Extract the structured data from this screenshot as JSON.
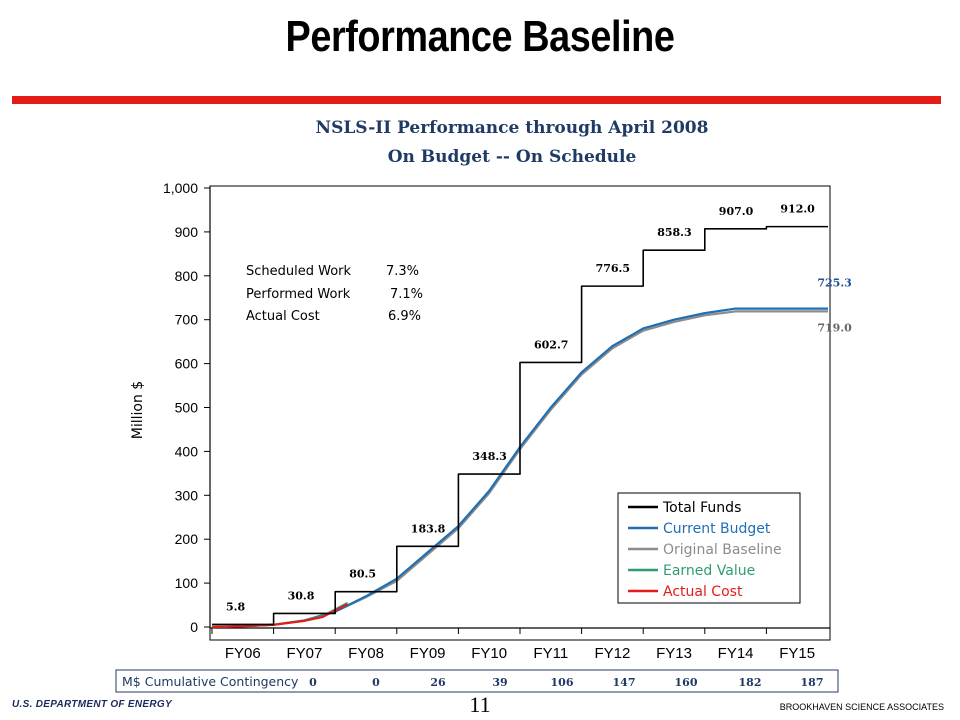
{
  "slide": {
    "title": "Performance Baseline",
    "page_number": "11",
    "footer_left": "U.S. DEPARTMENT OF ENERGY",
    "footer_right": "BROOKHAVEN SCIENCE ASSOCIATES"
  },
  "colors": {
    "title_rule": "#e41b17",
    "total_funds": "#000000",
    "current_budget": "#1f6fb5",
    "original_baseline": "#8c8c8c",
    "earned_value": "#2e9e6e",
    "actual_cost": "#e41b17",
    "chart_title": "#1f3a64"
  },
  "performance_box": [
    {
      "label": "Scheduled Work",
      "value": "7.3%"
    },
    {
      "label": "Performed Work",
      "value": "7.1%"
    },
    {
      "label": "Actual Cost",
      "value": "6.9%"
    }
  ],
  "contingency": {
    "label": "M$ Cumulative Contingency",
    "values": [
      "0",
      "0",
      "26",
      "39",
      "106",
      "147",
      "160",
      "182",
      "187"
    ]
  },
  "chart_data": {
    "type": "line",
    "title": "NSLS-II Performance through April 2008",
    "subtitle": "On Budget -- On Schedule",
    "ylabel": "Million $",
    "xlabel": "",
    "ylim": [
      0,
      1000
    ],
    "yticks": [
      "0",
      "100",
      "200",
      "300",
      "400",
      "500",
      "600",
      "700",
      "800",
      "900",
      "1,000"
    ],
    "categories": [
      "FY06",
      "FY07",
      "FY08",
      "FY09",
      "FY10",
      "FY11",
      "FY12",
      "FY13",
      "FY14",
      "FY15"
    ],
    "x_range": [
      0,
      10
    ],
    "grid": false,
    "legend_position": "bottom-right",
    "series": [
      {
        "name": "Total Funds",
        "step": true,
        "x": [
          0,
          1,
          2,
          3,
          4,
          5,
          6,
          7,
          8,
          9,
          10
        ],
        "y": [
          5.8,
          30.8,
          80.5,
          183.8,
          348.3,
          602.7,
          776.5,
          858.3,
          907.0,
          912.0,
          912.0
        ]
      },
      {
        "name": "Current Budget",
        "x": [
          0,
          0.5,
          1,
          1.5,
          2,
          2.5,
          3,
          3.5,
          4,
          4.5,
          5,
          5.5,
          6,
          6.5,
          7,
          7.5,
          8,
          8.5,
          9,
          9.5,
          10
        ],
        "y": [
          0,
          2,
          5,
          15,
          35,
          70,
          110,
          170,
          230,
          310,
          410,
          500,
          580,
          640,
          680,
          700,
          715,
          725.3,
          725.3,
          725.3,
          725.3
        ]
      },
      {
        "name": "Original Baseline",
        "x": [
          0,
          0.5,
          1,
          1.5,
          2,
          2.5,
          3,
          3.5,
          4,
          4.5,
          5,
          5.5,
          6,
          6.5,
          7,
          7.5,
          8,
          8.5,
          9,
          9.5,
          10
        ],
        "y": [
          0,
          2,
          5,
          15,
          35,
          68,
          105,
          165,
          225,
          305,
          405,
          495,
          575,
          635,
          675,
          695,
          710,
          719.0,
          719.0,
          719.0,
          719.0
        ]
      },
      {
        "name": "Earned Value",
        "x": [
          0,
          0.5,
          1,
          1.5,
          1.8,
          2.0,
          2.2
        ],
        "y": [
          0,
          2,
          5,
          15,
          25,
          40,
          55
        ]
      },
      {
        "name": "Actual Cost",
        "x": [
          0,
          0.5,
          1,
          1.5,
          1.8,
          2.0,
          2.2
        ],
        "y": [
          0,
          2,
          5,
          14,
          23,
          38,
          52
        ]
      }
    ],
    "annotations": [
      {
        "text": "5.8",
        "x": 0,
        "y": 5.8,
        "kind": "step"
      },
      {
        "text": "30.8",
        "x": 1,
        "y": 30.8,
        "kind": "step"
      },
      {
        "text": "80.5",
        "x": 2,
        "y": 80.5,
        "kind": "step"
      },
      {
        "text": "183.8",
        "x": 3,
        "y": 183.8,
        "kind": "step"
      },
      {
        "text": "348.3",
        "x": 4,
        "y": 348.3,
        "kind": "step"
      },
      {
        "text": "602.7",
        "x": 5,
        "y": 602.7,
        "kind": "step"
      },
      {
        "text": "776.5",
        "x": 6,
        "y": 776.5,
        "kind": "step"
      },
      {
        "text": "858.3",
        "x": 7,
        "y": 858.3,
        "kind": "step"
      },
      {
        "text": "907.0",
        "x": 8,
        "y": 907.0,
        "kind": "step"
      },
      {
        "text": "912.0",
        "x": 9,
        "y": 912.0,
        "kind": "step"
      },
      {
        "text": "725.3",
        "x": 9.6,
        "y": 725.3,
        "kind": "budget"
      },
      {
        "text": "719.0",
        "x": 9.6,
        "y": 719.0,
        "kind": "baseline"
      }
    ]
  }
}
